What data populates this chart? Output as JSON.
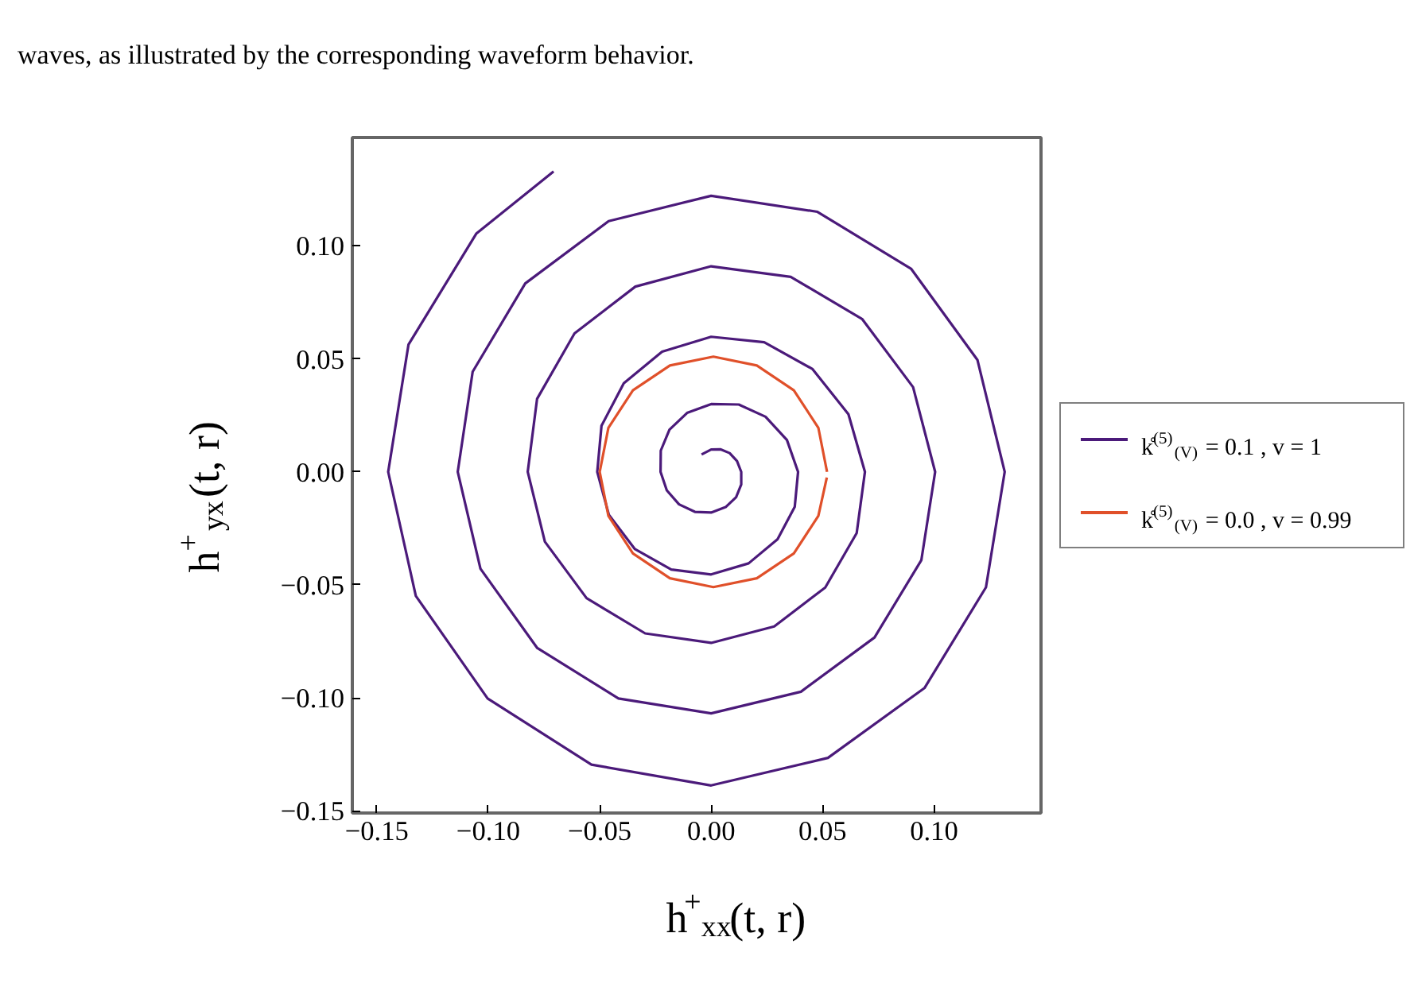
{
  "chart_data": {
    "type": "line",
    "xlabel": "h$^{+}$$_{xx}$(t, r)",
    "ylabel": "h$^{+}$$_{yx}$(t, r)",
    "annotations": [
      "waves, as illustrated by the corresponding waveform behavior."
    ],
    "xlim": [
      -0.161,
      0.148
    ],
    "ylim": [
      -0.151,
      0.148
    ],
    "xticks": [
      {
        "value": -0.15,
        "label": "−0.15"
      },
      {
        "value": -0.1,
        "label": "−0.10"
      },
      {
        "value": -0.05,
        "label": "−0.05"
      },
      {
        "value": 0,
        "label": "0.00"
      },
      {
        "value": 0.05,
        "label": "0.05"
      },
      {
        "value": 0.1,
        "label": "0.10"
      }
    ],
    "yticks": [
      {
        "value": -0.15,
        "label": "−0.15"
      },
      {
        "value": -0.1,
        "label": "−0.10"
      },
      {
        "value": -0.05,
        "label": "−0.05"
      },
      {
        "value": 0,
        "label": "0.00"
      },
      {
        "value": 0.05,
        "label": "0.05"
      },
      {
        "value": 0.1,
        "label": "0.10"
      }
    ],
    "grid": false,
    "legend": "right",
    "marker": "none",
    "line_style": "solid",
    "series": [
      {
        "name": "k̊$^{(5)}$$_{(V)}$ = 0.1 , v = 1",
        "color": "#4b1a7a",
        "x": [
          -0.0043,
          0,
          0.0041,
          0.0083,
          0.0116,
          0.0135,
          0.0135,
          0.0112,
          0.0065,
          0,
          -0.0073,
          -0.0144,
          -0.0199,
          -0.0227,
          -0.0226,
          -0.0187,
          -0.0108,
          0,
          0.0124,
          0.0244,
          0.034,
          0.039,
          0.0375,
          0.0298,
          0.0168,
          0,
          -0.0179,
          -0.0342,
          -0.0459,
          -0.0511,
          -0.0492,
          -0.0392,
          -0.022,
          0,
          0.0238,
          0.0455,
          0.0616,
          0.069,
          0.0653,
          0.0512,
          0.0283,
          0,
          -0.0296,
          -0.0559,
          -0.0746,
          -0.0823,
          -0.0781,
          -0.0613,
          -0.034,
          0,
          0.0357,
          0.0677,
          0.0906,
          0.1005,
          0.0943,
          0.0733,
          0.0403,
          0,
          -0.0416,
          -0.078,
          -0.1035,
          -0.1137,
          -0.107,
          -0.0834,
          -0.046,
          0,
          0.0477,
          0.0898,
          0.1195,
          0.1317,
          0.1233,
          0.0957,
          0.0524,
          0,
          -0.0537,
          -0.1003,
          -0.1325,
          -0.1449,
          -0.1358,
          -0.1054,
          -0.0707
        ],
        "values": [
          0.0077,
          0.0099,
          0.01,
          0.0083,
          0.0048,
          0,
          -0.0056,
          -0.0112,
          -0.0156,
          -0.018,
          -0.0177,
          -0.0144,
          -0.0082,
          0,
          0.0094,
          0.0187,
          0.0261,
          0.03,
          0.0298,
          0.0244,
          0.0141,
          0,
          -0.0155,
          -0.0298,
          -0.0405,
          -0.0454,
          -0.0432,
          -0.0342,
          -0.019,
          0,
          0.0204,
          0.0392,
          0.0532,
          0.0598,
          0.0574,
          0.0455,
          0.0255,
          0,
          -0.0271,
          -0.0512,
          -0.0684,
          -0.0757,
          -0.0715,
          -0.0559,
          -0.0309,
          0,
          0.0323,
          0.0613,
          0.082,
          0.091,
          0.0863,
          0.0677,
          0.0375,
          0,
          -0.0391,
          -0.0733,
          -0.0973,
          -0.1069,
          -0.1003,
          -0.078,
          -0.0429,
          0,
          0.0443,
          0.0834,
          0.111,
          0.1222,
          0.1151,
          0.0898,
          0.0495,
          0,
          -0.0511,
          -0.0957,
          -0.1266,
          -0.1388,
          -0.1296,
          -0.1003,
          -0.0549,
          0,
          0.0563,
          0.1054,
          0.133
        ]
      },
      {
        "name": "k̊$^{(5)}$$_{(V)}$ = 0.0 , v = 0.99",
        "color": "#e0502a",
        "x": [
          0.052,
          0.0481,
          0.0371,
          0.0205,
          0.001,
          -0.0185,
          -0.0351,
          -0.0461,
          -0.05,
          -0.0461,
          -0.0351,
          -0.0185,
          0.001,
          0.0205,
          0.0371,
          0.0481,
          0.0519
        ],
        "values": [
          0,
          0.0195,
          0.0361,
          0.0471,
          0.051,
          0.0471,
          0.0361,
          0.0195,
          0,
          -0.0195,
          -0.0361,
          -0.0471,
          -0.051,
          -0.0471,
          -0.0361,
          -0.0195,
          -0.0025
        ]
      }
    ]
  }
}
